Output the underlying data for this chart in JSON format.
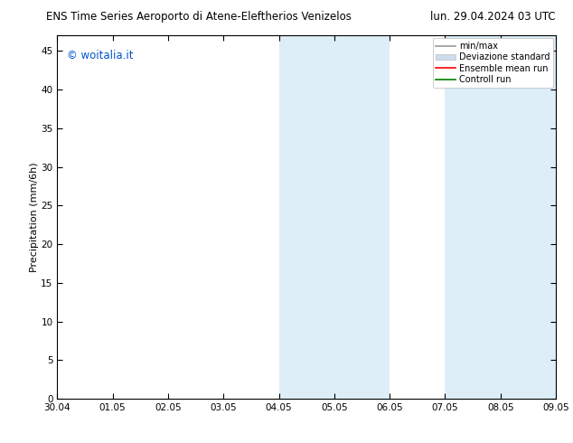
{
  "title_left": "ENS Time Series Aeroporto di Atene-Eleftherios Venizelos",
  "title_right": "lun. 29.04.2024 03 UTC",
  "ylabel": "Precipitation (mm/6h)",
  "watermark": "© woitalia.it",
  "xtick_labels": [
    "30.04",
    "01.05",
    "02.05",
    "03.05",
    "04.05",
    "05.05",
    "06.05",
    "07.05",
    "08.05",
    "09.05"
  ],
  "ytick_values": [
    0,
    5,
    10,
    15,
    20,
    25,
    30,
    35,
    40,
    45
  ],
  "ymax": 47,
  "ymin": 0,
  "xmin": 0,
  "xmax": 9,
  "shaded_bands": [
    {
      "x_start": 4.0,
      "x_end": 5.0,
      "color": "#ddeef8"
    },
    {
      "x_start": 5.0,
      "x_end": 6.0,
      "color": "#ddeef8"
    },
    {
      "x_start": 7.0,
      "x_end": 8.0,
      "color": "#ddeef8"
    },
    {
      "x_start": 8.0,
      "x_end": 9.0,
      "color": "#ddeef8"
    }
  ],
  "legend_entries": [
    {
      "label": "min/max",
      "color": "#999999",
      "style": "line",
      "lw": 1.2
    },
    {
      "label": "Deviazione standard",
      "color": "#ccddee",
      "style": "patch"
    },
    {
      "label": "Ensemble mean run",
      "color": "red",
      "style": "line",
      "lw": 1.2
    },
    {
      "label": "Controll run",
      "color": "green",
      "style": "line",
      "lw": 1.2
    }
  ],
  "background_color": "#ffffff",
  "plot_bg_color": "#ffffff",
  "title_fontsize": 8.5,
  "tick_fontsize": 7.5,
  "ylabel_fontsize": 8,
  "watermark_color": "#0055cc",
  "watermark_fontsize": 8.5,
  "legend_fontsize": 7
}
